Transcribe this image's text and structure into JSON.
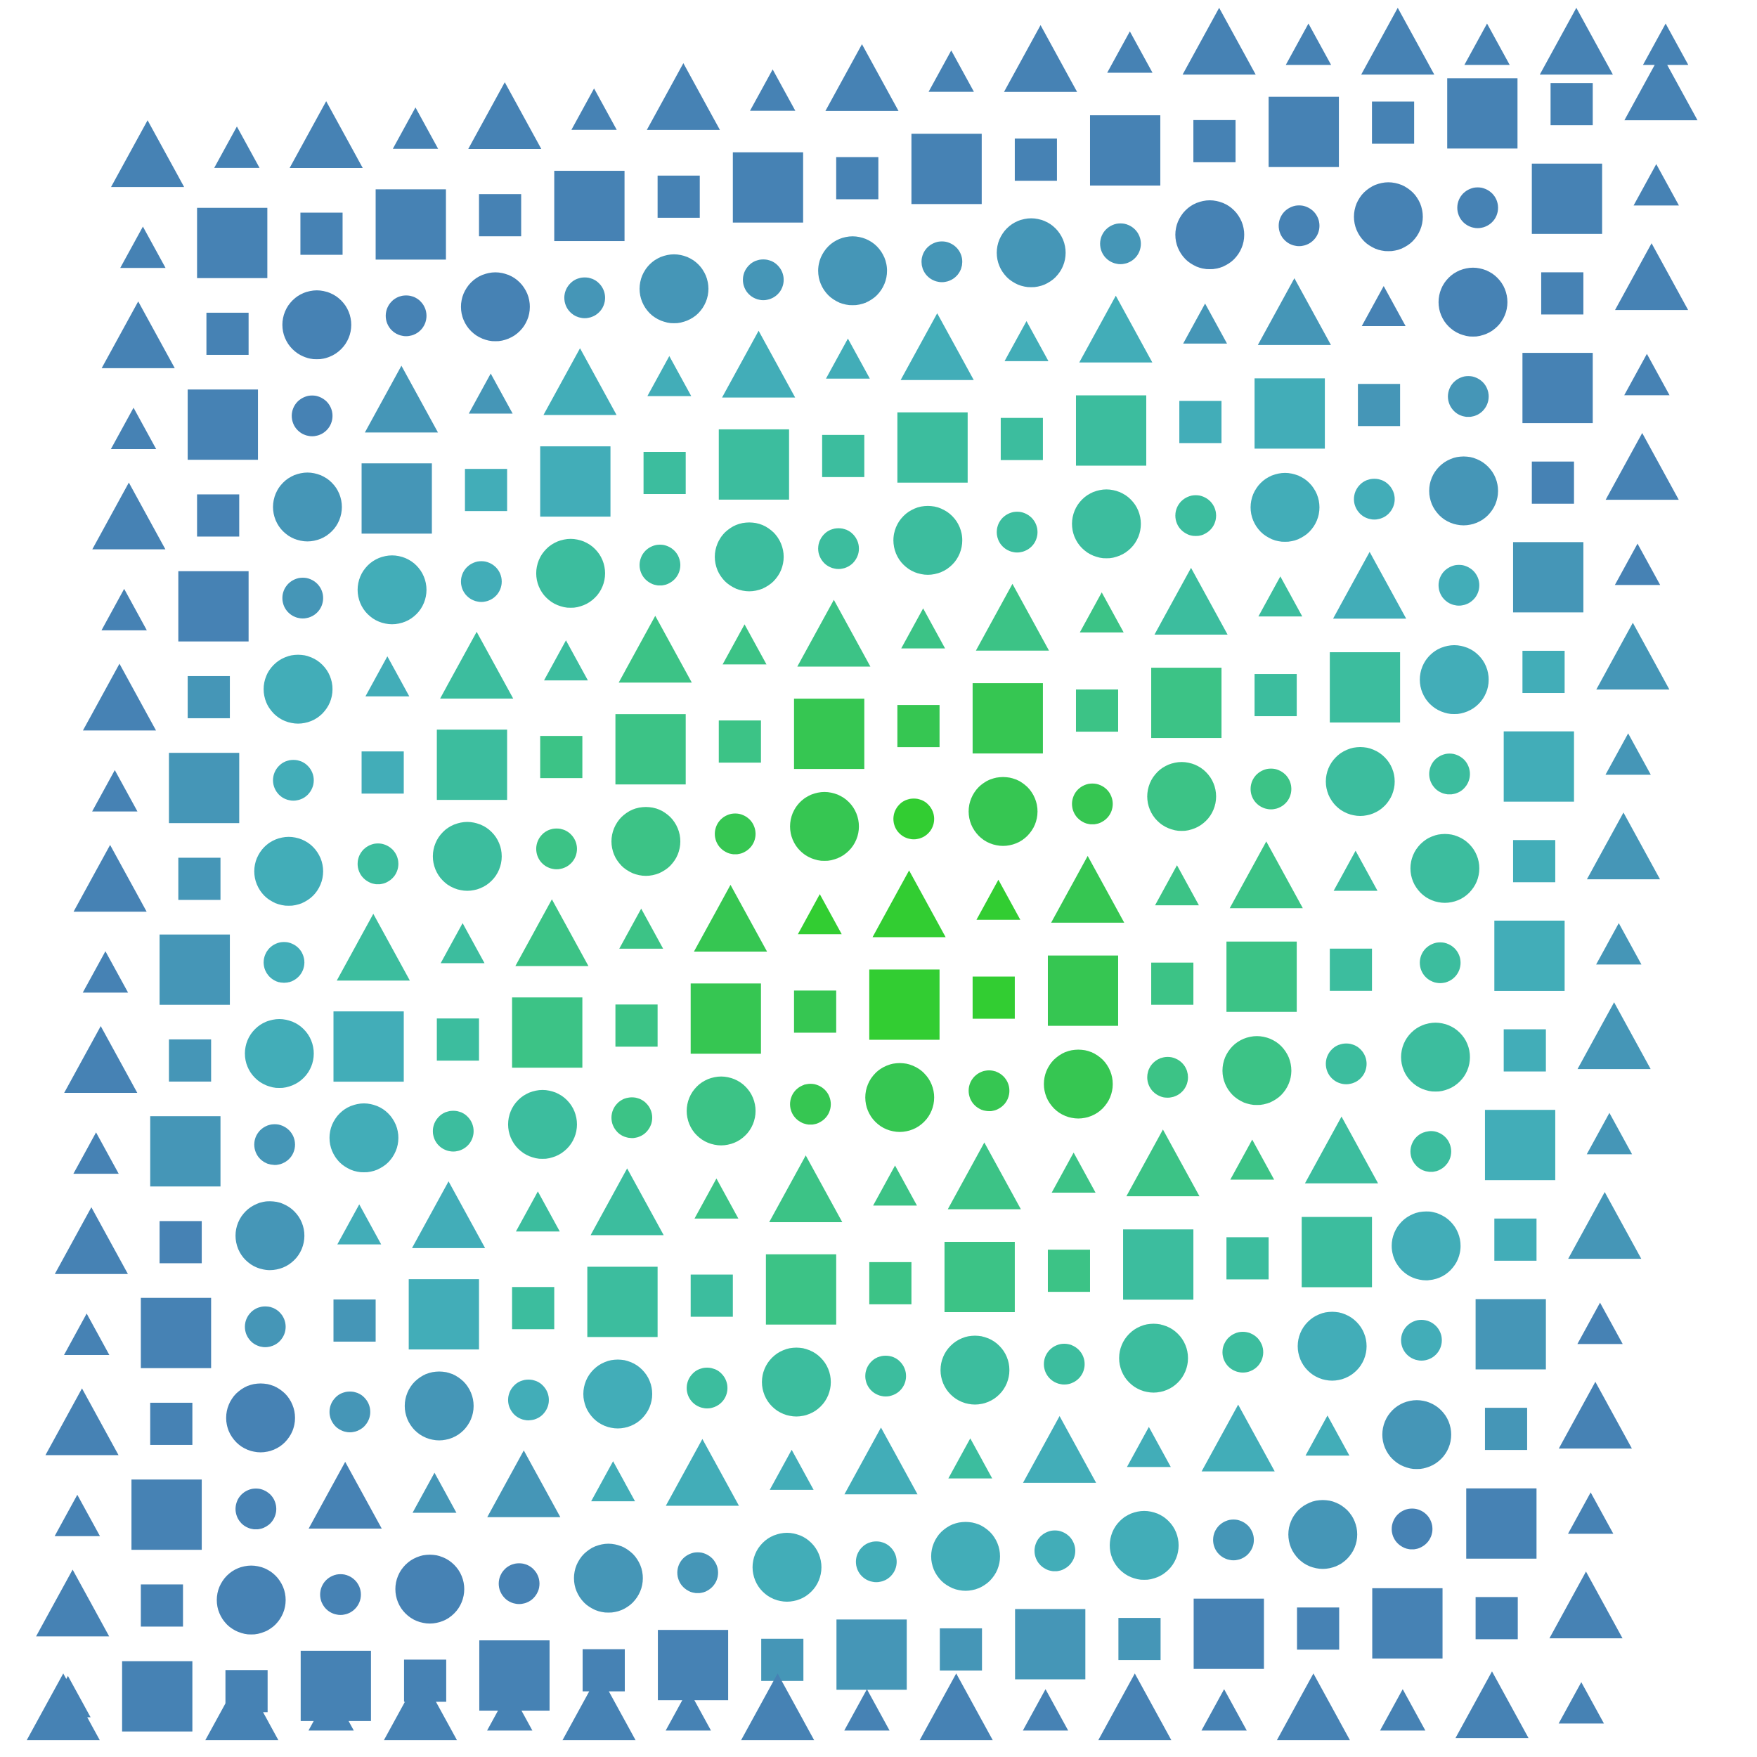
{
  "artwork": {
    "palette": {
      "outer_blue": "#4682b4",
      "steel_teal": "#4596b7",
      "teal": "#42adb8",
      "seafoam": "#3cbd9e",
      "mint_green": "#3cc386",
      "green": "#36c652",
      "bright_green": "#32cd32"
    },
    "shape_kinds": [
      "triangle",
      "square",
      "circle"
    ]
  }
}
